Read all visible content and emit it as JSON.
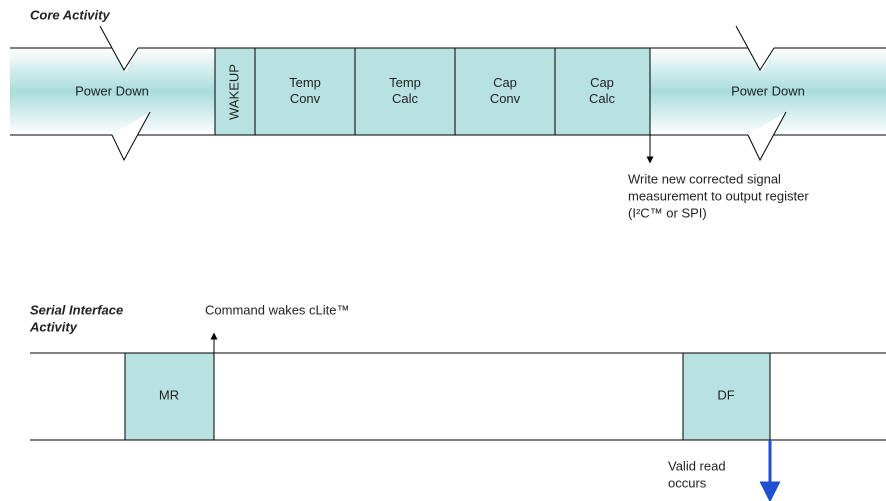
{
  "core": {
    "title": "Core Activity",
    "blocks": [
      "Power Down",
      "WAKEUP",
      "Temp\nConv",
      "Temp\nCalc",
      "Cap\nConv",
      "Cap\nCalc",
      "Power Down"
    ],
    "note": [
      "Write new corrected signal",
      "measurement to output register",
      "(I²C™ or SPI)"
    ]
  },
  "serial": {
    "title": [
      "Serial Interface",
      "Activity"
    ],
    "command_note": "Command wakes cLite™",
    "blocks": [
      "MR",
      "DF"
    ],
    "read_note": [
      "Valid read",
      "occurs"
    ]
  }
}
